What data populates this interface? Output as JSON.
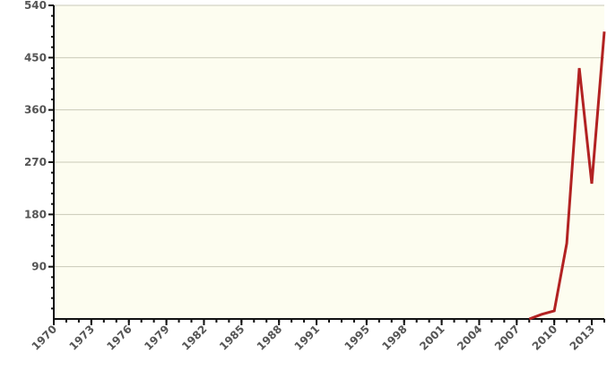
{
  "chart_data": {
    "type": "line",
    "title": "",
    "xlabel": "",
    "ylabel": "",
    "xlim": [
      1970,
      2014
    ],
    "ylim": [
      0,
      540
    ],
    "yticks": [
      90,
      180,
      270,
      360,
      450,
      540
    ],
    "xticks": [
      1970,
      1973,
      1976,
      1979,
      1982,
      1985,
      1988,
      1991,
      1995,
      1998,
      2001,
      2004,
      2007,
      2010,
      2013
    ],
    "grid": true,
    "legend": "none",
    "colors": {
      "plot_background": "#fdfdf0",
      "gridline": "#c9c9b8",
      "axis": "#111111",
      "line": "#b22222"
    },
    "series": [
      {
        "x": [
          2008,
          2009,
          2010,
          2011,
          2012,
          2013,
          2014
        ],
        "y": [
          0,
          8,
          14,
          130,
          432,
          233,
          495
        ]
      }
    ]
  }
}
